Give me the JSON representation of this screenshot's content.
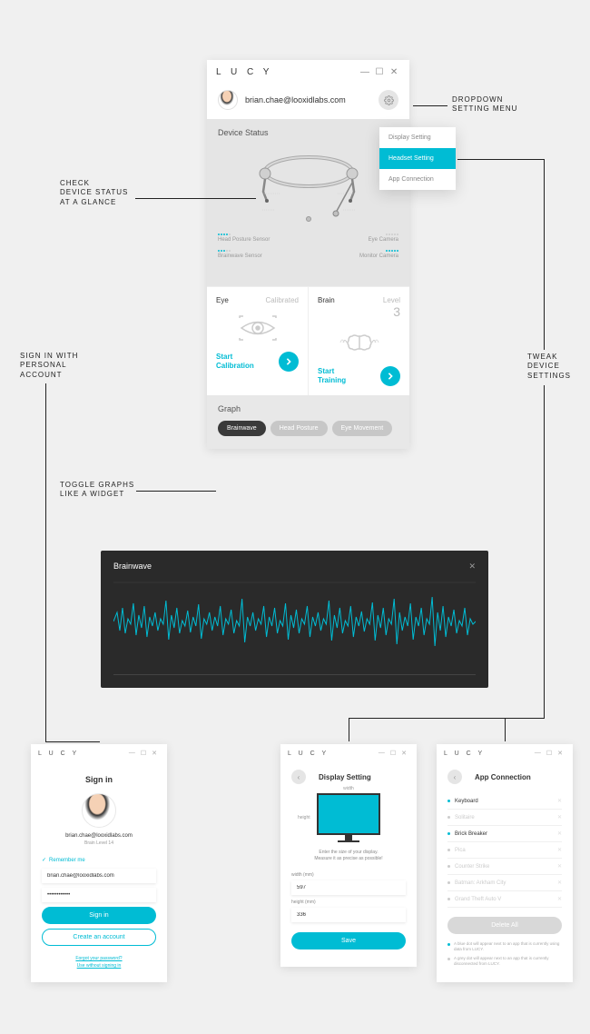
{
  "colors": {
    "accent": "#00bcd4",
    "dark": "#2a2a2a"
  },
  "app": {
    "brand": "L U C Y",
    "user_email": "brian.chae@looxidlabs.com",
    "device_status_label": "Device Status",
    "sensors": {
      "head_posture": "Head Posture Sensor",
      "brainwave": "Brainwave Sensor",
      "eye_camera": "Eye Camera",
      "monitor_camera": "Monitor Camera"
    },
    "eye": {
      "label": "Eye",
      "sub": "Calibrated",
      "action": "Start\nCalibration"
    },
    "brain": {
      "label": "Brain",
      "sub": "Level",
      "level": "3",
      "action": "Start\nTraining"
    },
    "graph_label": "Graph",
    "chips": [
      "Brainwave",
      "Head Posture",
      "Eye Movement"
    ]
  },
  "dropdown": {
    "items": [
      "Display Setting",
      "Headset Setting",
      "App Connection"
    ],
    "active": 1
  },
  "brainwave_panel": {
    "title": "Brainwave"
  },
  "signin": {
    "title": "Sign in",
    "email": "brian.chae@looxidlabs.com",
    "level": "Brain Level 14",
    "remember_label": "Remember me",
    "email_value": "brian.chae@looxidlabs.com",
    "password_mask": "••••••••••••",
    "btn_signin": "Sign in",
    "btn_create": "Create an account",
    "link_forgot": "Forgot your password?",
    "link_guest": "Use without signing in"
  },
  "display": {
    "title": "Display Setting",
    "width_dim": "width",
    "height_dim": "height",
    "instruction1": "Enter the size of your display.",
    "instruction2": "Measure it as precise as possible!",
    "width_label": "width (mm)",
    "width_val": "597",
    "height_label": "height (mm)",
    "height_val": "336",
    "btn_save": "Save"
  },
  "appcon": {
    "title": "App Connection",
    "apps": [
      {
        "name": "Keyboard",
        "active": true
      },
      {
        "name": "Solitaire",
        "active": false
      },
      {
        "name": "Brick Breaker",
        "active": true
      },
      {
        "name": "Pica",
        "active": false
      },
      {
        "name": "Counter Strike",
        "active": false
      },
      {
        "name": "Batman: Arkham City",
        "active": false
      },
      {
        "name": "Grand Theft Auto V",
        "active": false
      }
    ],
    "btn_delete": "Delete All",
    "legend_blue": "A blue dot will appear next to an app that is currently using data from LUCY.",
    "legend_grey": "A grey dot will appear next to an app that is currently disconnected from LUCY."
  },
  "annotations": {
    "dropdown": "DROPDOWN\nSETTING MENU",
    "device_status": "CHECK\nDEVICE STATUS\nAT A GLANCE",
    "signin": "SIGN IN WITH\nPERSONAL\nACCOUNT",
    "graphs": "TOGGLE GRAPHS\nLIKE A WIDGET",
    "tweak": "TWEAK\nDEVICE\nSETTINGS"
  }
}
